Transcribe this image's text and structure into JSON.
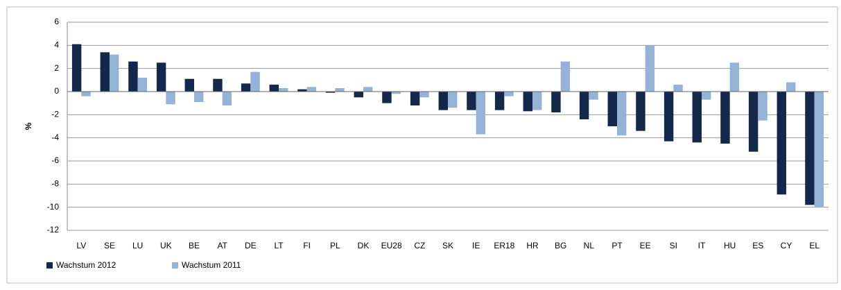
{
  "chart_data": {
    "type": "bar",
    "categories": [
      "LV",
      "SE",
      "LU",
      "UK",
      "BE",
      "AT",
      "DE",
      "LT",
      "FI",
      "PL",
      "DK",
      "EU28",
      "CZ",
      "SK",
      "IE",
      "ER18",
      "HR",
      "BG",
      "NL",
      "PT",
      "EE",
      "SI",
      "IT",
      "HU",
      "ES",
      "CY",
      "EL"
    ],
    "series": [
      {
        "name": "Wachstum 2012",
        "color": "#14284b",
        "values": [
          4.1,
          3.4,
          2.6,
          2.5,
          1.1,
          1.1,
          0.7,
          0.6,
          0.2,
          -0.1,
          -0.5,
          -1.0,
          -1.2,
          -1.6,
          -1.6,
          -1.6,
          -1.7,
          -1.8,
          -2.4,
          -3.0,
          -3.4,
          -4.3,
          -4.4,
          -4.5,
          -5.2,
          -8.9,
          -9.8
        ]
      },
      {
        "name": "Wachstum 2011",
        "color": "#95b3d7",
        "values": [
          -0.4,
          3.2,
          1.2,
          -1.1,
          -0.9,
          -1.2,
          1.7,
          0.3,
          0.4,
          0.3,
          0.4,
          -0.2,
          -0.5,
          -1.4,
          -3.7,
          -0.4,
          -1.6,
          2.6,
          -0.7,
          -3.8,
          4.0,
          0.6,
          -0.7,
          2.5,
          -2.5,
          0.8,
          -10.0
        ]
      }
    ],
    "y_label": "%",
    "ylim": [
      -12,
      6
    ],
    "yticks": [
      -12,
      -10,
      -8,
      -6,
      -4,
      -2,
      0,
      2,
      4,
      6
    ],
    "grid": true
  }
}
